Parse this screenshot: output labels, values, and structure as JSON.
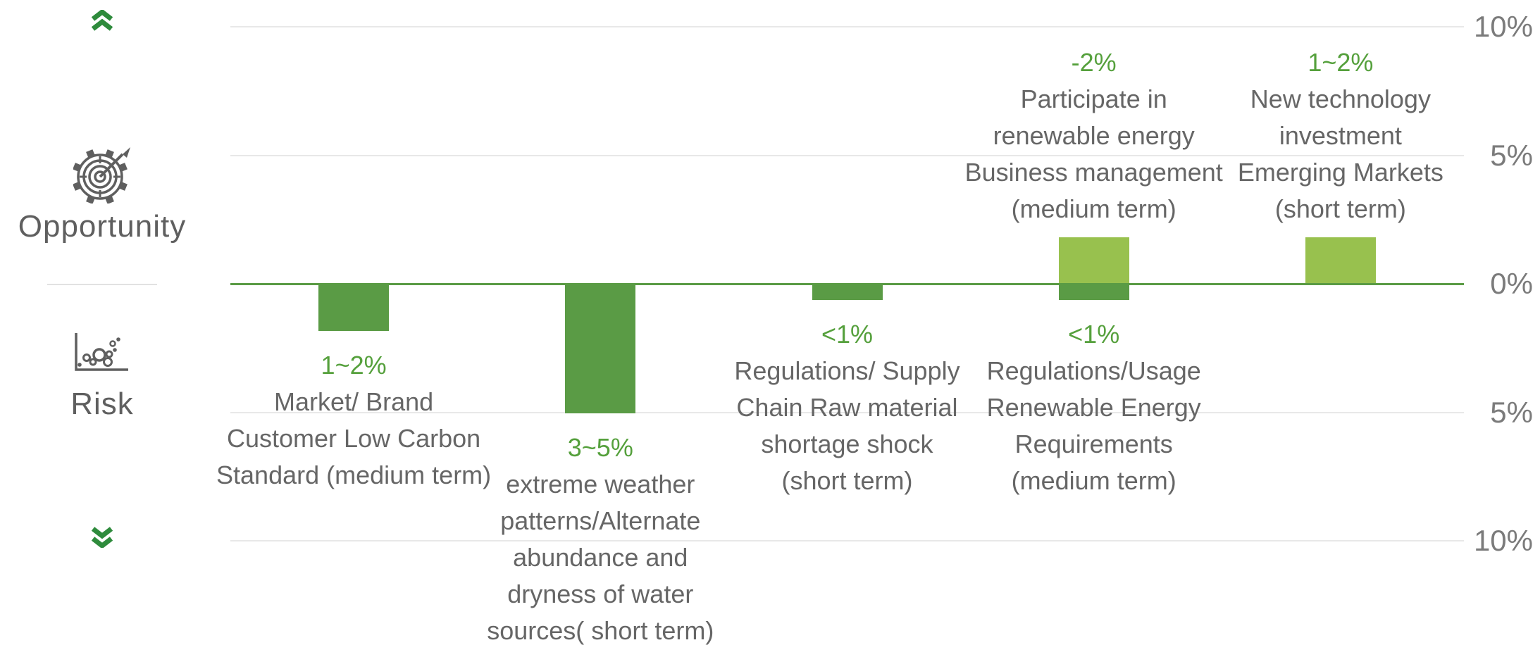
{
  "page": {
    "background": "#ffffff"
  },
  "sidebar": {
    "opportunity_label": "Opportunity",
    "risk_label": "Risk",
    "chevron_color": "#2e8b3c",
    "icon_color": "#5f5f5f",
    "text_color": "#5f5f5f"
  },
  "chart_data": {
    "type": "bar",
    "title": "",
    "xlabel": "",
    "ylabel": "",
    "unit": "%",
    "ylim": [
      -10,
      10
    ],
    "grid": true,
    "legend_position": "left",
    "colors": {
      "risk_bar": "#5a9b45",
      "opportunity_bar": "#98c14e",
      "zero_line": "#5a9b44",
      "value_label": "#55a03c",
      "category_text": "#666666",
      "axis_tick_text": "#7b7b7b",
      "gridline": "#e8e8e8"
    },
    "right_axis_ticks": [
      {
        "value": 10,
        "label": "10%"
      },
      {
        "value": 5,
        "label": "5%"
      },
      {
        "value": 0,
        "label": "0%"
      },
      {
        "value": -5,
        "label": "5%"
      },
      {
        "value": -10,
        "label": "10%"
      }
    ],
    "items": [
      {
        "name": "market-brand-low-carbon-risk",
        "slot": 0,
        "series": "risk",
        "value_label": "1~2%",
        "estimated_value_pct": -1.8,
        "label_side": "below",
        "label_lines": [
          "Market/ Brand",
          "Customer Low Carbon",
          "Standard (medium term)"
        ]
      },
      {
        "name": "extreme-weather-water-risk",
        "slot": 1,
        "series": "risk",
        "value_label": "3~5%",
        "estimated_value_pct": -5,
        "label_side": "below",
        "label_lines": [
          "extreme weather",
          "patterns/Alternate",
          "abundance and",
          "dryness of water",
          "sources( short term)"
        ]
      },
      {
        "name": "regulations-supply-chain-risk",
        "slot": 2,
        "series": "risk",
        "value_label": "<1%",
        "estimated_value_pct": -0.6,
        "label_side": "below",
        "label_lines": [
          "Regulations/ Supply",
          "Chain Raw material",
          "shortage shock",
          "(short term)"
        ]
      },
      {
        "name": "regulations-usage-renewable-risk",
        "slot": 3,
        "series": "risk",
        "value_label": "<1%",
        "estimated_value_pct": -0.6,
        "label_side": "below",
        "label_lines": [
          "Regulations/Usage",
          "Renewable Energy",
          "Requirements",
          "(medium term)"
        ]
      },
      {
        "name": "participate-renewable-energy-opportunity",
        "slot": 3,
        "series": "opportunity",
        "value_label": "-2%",
        "estimated_value_pct": 1.8,
        "label_side": "above",
        "label_lines": [
          "Participate in",
          "renewable energy",
          "Business management",
          "(medium term)"
        ]
      },
      {
        "name": "new-technology-investment-opportunity",
        "slot": 4,
        "series": "opportunity",
        "value_label": "1~2%",
        "estimated_value_pct": 1.8,
        "label_side": "above",
        "label_lines": [
          "New technology",
          "investment",
          "Emerging Markets",
          "(short term)"
        ]
      }
    ]
  }
}
